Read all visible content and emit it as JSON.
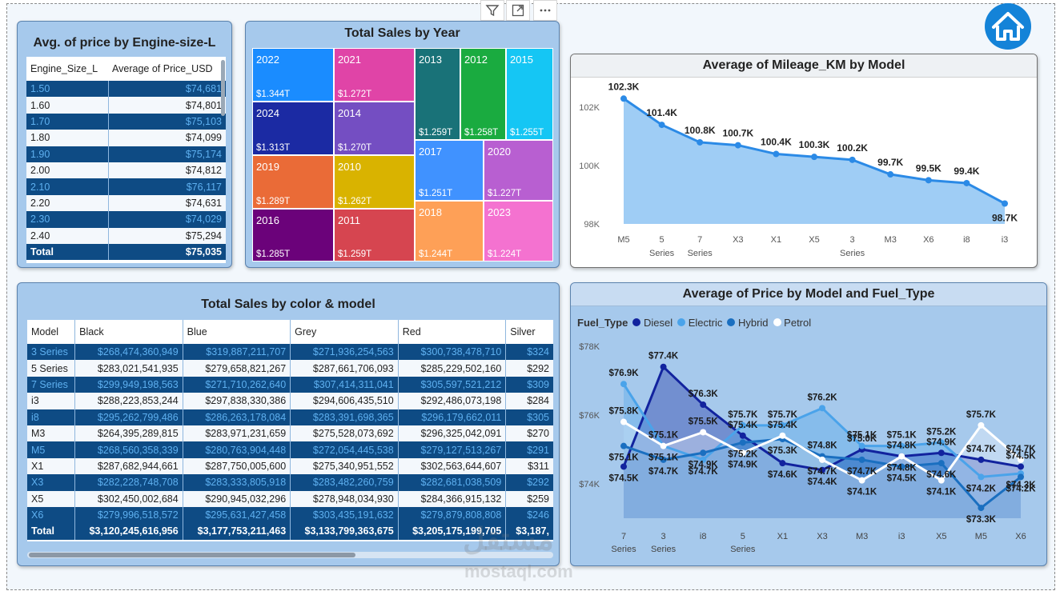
{
  "visual_header": {
    "icons": [
      "filter-icon",
      "focus-mode-icon",
      "more-options-icon"
    ]
  },
  "home_button": {
    "icon": "home-icon"
  },
  "engine_table": {
    "title": "Avg. of price by Engine-size-L",
    "col1": "Engine_Size_L",
    "col2": "Average of Price_USD",
    "rows": [
      {
        "size": "1.50",
        "price": "$74,681"
      },
      {
        "size": "1.60",
        "price": "$74,801"
      },
      {
        "size": "1.70",
        "price": "$75,103"
      },
      {
        "size": "1.80",
        "price": "$74,099"
      },
      {
        "size": "1.90",
        "price": "$75,174"
      },
      {
        "size": "2.00",
        "price": "$74,812"
      },
      {
        "size": "2.10",
        "price": "$76,117"
      },
      {
        "size": "2.20",
        "price": "$74,631"
      },
      {
        "size": "2.30",
        "price": "$74,029"
      },
      {
        "size": "2.40",
        "price": "$75,294"
      }
    ],
    "total_label": "Total",
    "total_value": "$75,035"
  },
  "treemap": {
    "title": "Total Sales by Year",
    "cells": [
      {
        "year": "2022",
        "value": "$1.344T",
        "color": "#1a8cff"
      },
      {
        "year": "2024",
        "value": "$1.313T",
        "color": "#1b2aa3"
      },
      {
        "year": "2019",
        "value": "$1.289T",
        "color": "#ea6b37"
      },
      {
        "year": "2016",
        "value": "$1.285T",
        "color": "#6b027a"
      },
      {
        "year": "2021",
        "value": "$1.272T",
        "color": "#e044a7"
      },
      {
        "year": "2014",
        "value": "$1.270T",
        "color": "#744ec2"
      },
      {
        "year": "2010",
        "value": "$1.262T",
        "color": "#d9b300"
      },
      {
        "year": "2011",
        "value": "$1.259T",
        "color": "#d64550"
      },
      {
        "year": "2013",
        "value": "$1.259T",
        "color": "#197278"
      },
      {
        "year": "2012",
        "value": "$1.258T",
        "color": "#1aab40"
      },
      {
        "year": "2015",
        "value": "$1.255T",
        "color": "#15c6f4"
      },
      {
        "year": "2017",
        "value": "$1.251T",
        "color": "#4092ff"
      },
      {
        "year": "2020",
        "value": "$1.227T",
        "color": "#b85fd1"
      },
      {
        "year": "2018",
        "value": "$1.244T",
        "color": "#fea057"
      },
      {
        "year": "2023",
        "value": "$1.224T",
        "color": "#f472d0"
      }
    ]
  },
  "mileage_chart": {
    "chart_data": {
      "type": "area",
      "title": "Average of Mileage_KM by Model",
      "categories": [
        "M5",
        "5 Series",
        "7 Series",
        "X3",
        "X1",
        "X5",
        "3 Series",
        "M3",
        "X6",
        "i8",
        "i3"
      ],
      "values": [
        102.3,
        101.4,
        100.8,
        100.7,
        100.4,
        100.3,
        100.2,
        99.7,
        99.5,
        99.4,
        98.7
      ],
      "labels": [
        "102.3K",
        "101.4K",
        "100.8K",
        "100.7K",
        "100.4K",
        "100.3K",
        "100.2K",
        "99.7K",
        "99.5K",
        "99.4K",
        "98.7K"
      ],
      "yticks": [
        "98K",
        "100K",
        "102K"
      ],
      "ylim": [
        98,
        102.5
      ],
      "color": "#2b8ae6"
    }
  },
  "color_table": {
    "title": "Total Sales by color & model",
    "headers": [
      "Model",
      "Black",
      "Blue",
      "Grey",
      "Red",
      "Silver"
    ],
    "rows": [
      [
        "3 Series",
        "$268,474,360,949",
        "$319,887,211,707",
        "$271,936,254,563",
        "$300,738,478,710",
        "$324"
      ],
      [
        "5 Series",
        "$283,021,541,935",
        "$279,658,821,267",
        "$287,661,706,093",
        "$285,229,502,160",
        "$292"
      ],
      [
        "7 Series",
        "$299,949,198,563",
        "$271,710,262,640",
        "$307,414,311,041",
        "$305,597,521,212",
        "$309"
      ],
      [
        "i3",
        "$288,223,853,244",
        "$297,838,330,386",
        "$294,606,435,510",
        "$292,486,073,198",
        "$284"
      ],
      [
        "i8",
        "$295,262,799,486",
        "$286,263,178,084",
        "$283,391,698,365",
        "$296,179,662,011",
        "$305"
      ],
      [
        "M3",
        "$264,395,289,815",
        "$283,971,231,659",
        "$275,528,073,692",
        "$296,325,042,091",
        "$270"
      ],
      [
        "M5",
        "$268,560,358,339",
        "$280,763,904,448",
        "$272,054,445,538",
        "$279,127,513,267",
        "$291"
      ],
      [
        "X1",
        "$287,682,944,661",
        "$287,750,005,600",
        "$275,340,951,552",
        "$302,563,644,607",
        "$311"
      ],
      [
        "X3",
        "$282,228,748,708",
        "$283,333,805,918",
        "$283,482,260,759",
        "$282,681,038,509",
        "$292"
      ],
      [
        "X5",
        "$302,450,002,684",
        "$290,945,032,296",
        "$278,948,034,930",
        "$284,366,915,132",
        "$259"
      ],
      [
        "X6",
        "$279,996,518,572",
        "$295,631,427,458",
        "$303,435,191,632",
        "$279,879,808,808",
        "$246"
      ]
    ],
    "total": [
      "Total",
      "$3,120,245,616,956",
      "$3,177,753,211,463",
      "$3,133,799,363,675",
      "$3,205,175,199,705",
      "$3,187,"
    ]
  },
  "price_chart": {
    "chart_data": {
      "type": "area",
      "title": "Average of Price by Model and Fuel_Type",
      "legend_title": "Fuel_Type",
      "categories": [
        "7 Series",
        "3 Series",
        "i8",
        "5 Series",
        "X1",
        "X3",
        "M3",
        "i3",
        "X5",
        "M5",
        "X6"
      ],
      "yticks": [
        "$74K",
        "$76K",
        "$78K"
      ],
      "ylim": [
        73.0,
        78.3
      ],
      "series": [
        {
          "name": "Diesel",
          "color": "#12239e",
          "values": [
            74.5,
            77.4,
            76.3,
            75.4,
            74.6,
            74.4,
            75.0,
            74.8,
            74.9,
            74.7,
            74.5
          ],
          "labels": [
            "$74.5K",
            "$77.4K",
            "$76.3K",
            "$75.4K",
            "$74.6K",
            "$74.4K",
            "$75.0K",
            "$74.8K",
            "$74.9K",
            "$74.7K",
            "$74.5K"
          ]
        },
        {
          "name": "Electric",
          "color": "#4aa3ea",
          "values": [
            76.9,
            75.1,
            74.7,
            75.7,
            75.7,
            76.2,
            75.1,
            75.1,
            75.2,
            74.2,
            74.3
          ],
          "labels": [
            "$76.9K",
            "$75.1K",
            "$74.7K",
            "$75.7K",
            "$75.7K",
            "$76.2K",
            "$75.1K",
            "$75.1K",
            "$75.2K",
            "$74.2K",
            "$74.3K"
          ]
        },
        {
          "name": "Hybrid",
          "color": "#1a6fc0",
          "values": [
            75.1,
            74.7,
            74.9,
            75.2,
            75.3,
            74.8,
            74.7,
            74.5,
            74.6,
            73.3,
            74.2
          ],
          "labels": [
            "$75.1K",
            "$74.7K",
            "$74.9K",
            "$75.2K",
            "$75.3K",
            "$74.8K",
            "$74.7K",
            "$74.5K",
            "$74.6K",
            "$73.3K",
            "$74.2K"
          ]
        },
        {
          "name": "Petrol",
          "color": "#ffffff",
          "values": [
            75.8,
            75.1,
            75.5,
            74.9,
            75.4,
            74.7,
            74.1,
            74.8,
            74.1,
            75.7,
            74.7
          ],
          "labels": [
            "$75.8K",
            "$75.1K",
            "$75.5K",
            "$74.9K",
            "$75.4K",
            "$74.7K",
            "$74.1K",
            "$74.8K",
            "$74.1K",
            "$75.7K",
            "$74.7K"
          ]
        }
      ]
    }
  },
  "watermark": {
    "arabic": "مستقل",
    "latin": "mostaql.com"
  }
}
